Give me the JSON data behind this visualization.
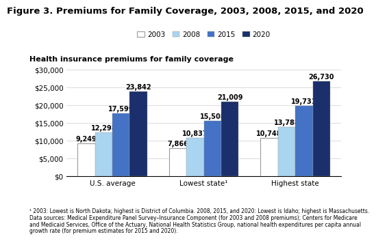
{
  "title": "Figure 3. Premiums for Family Coverage, 2003, 2008, 2015, and 2020",
  "subtitle": "Health insurance premiums for family coverage",
  "categories": [
    "U.S. average",
    "Lowest state¹",
    "Highest state"
  ],
  "years": [
    "2003",
    "2008",
    "2015",
    "2020"
  ],
  "values": [
    [
      9249,
      12298,
      17599,
      23842
    ],
    [
      7866,
      10837,
      15508,
      21009
    ],
    [
      10748,
      13788,
      19731,
      26730
    ]
  ],
  "bar_colors": [
    "#ffffff",
    "#aad4f0",
    "#4472c4",
    "#1a2f6b"
  ],
  "bar_edge_colors": [
    "#999999",
    "#999999",
    "#999999",
    "#999999"
  ],
  "ylim": [
    0,
    30000
  ],
  "yticks": [
    0,
    5000,
    10000,
    15000,
    20000,
    25000,
    30000
  ],
  "footnote_line1": "¹ 2003: Lowest is North Dakota; highest is District of Columbia. 2008, 2015, and 2020: Lowest is Idaho; highest is Massachusetts.",
  "footnote_line2": "Data sources: Medical Expenditure Panel Survey–Insurance Component (for 2003 and 2008 premiums); Centers for Medicare",
  "footnote_line3": "and Medicaid Services, Office of the Actuary, National Health Statistics Group, national health expenditures per capita annual",
  "footnote_line4": "growth rate (for premium estimates for 2015 and 2020).",
  "background_color": "#ffffff",
  "title_fontsize": 9.5,
  "subtitle_fontsize": 8,
  "label_fontsize": 7,
  "tick_fontsize": 7.5,
  "legend_fontsize": 7.5,
  "footnote_fontsize": 5.5,
  "bar_width": 0.19
}
